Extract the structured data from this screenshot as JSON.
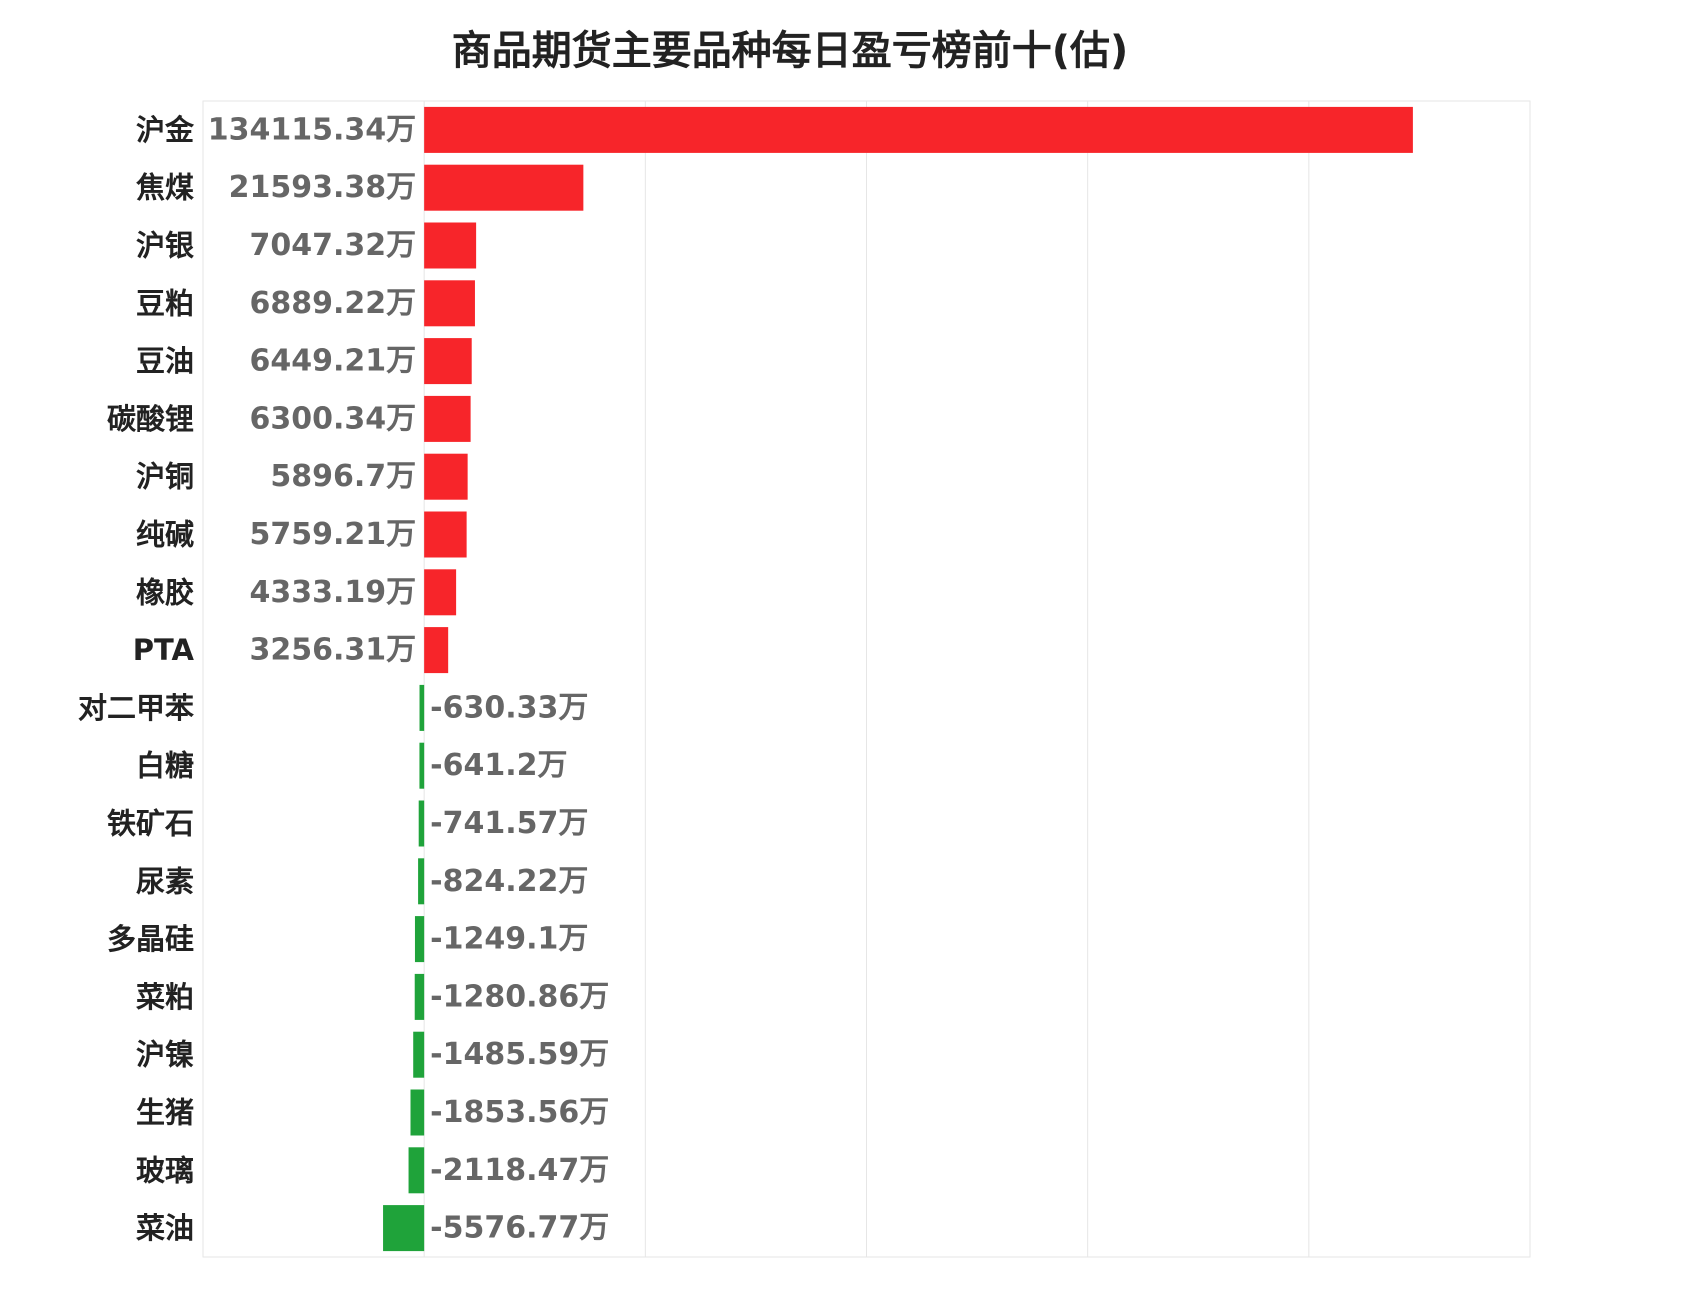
{
  "chart_data": {
    "type": "bar",
    "orientation": "horizontal",
    "title": "商品期货主要品种每日盈亏榜前十(估)",
    "unit": "万",
    "categories": [
      "沪金",
      "焦煤",
      "沪银",
      "豆粕",
      "豆油",
      "碳酸锂",
      "沪铜",
      "纯碱",
      "橡胶",
      "PTA",
      "对二甲苯",
      "白糖",
      "铁矿石",
      "尿素",
      "多晶硅",
      "菜粕",
      "沪镍",
      "生猪",
      "玻璃",
      "菜油"
    ],
    "values": [
      134115.34,
      21593.38,
      7047.32,
      6889.22,
      6449.21,
      6300.34,
      5896.7,
      5759.21,
      4333.19,
      3256.31,
      -630.33,
      -641.2,
      -741.57,
      -824.22,
      -1249.1,
      -1280.86,
      -1485.59,
      -1853.56,
      -2118.47,
      -5576.77
    ],
    "value_labels": [
      "134115.34万",
      "21593.38万",
      "7047.32万",
      "6889.22万",
      "6449.21万",
      "6300.34万",
      "5896.7万",
      "5759.21万",
      "4333.19万",
      "3256.31万",
      "-630.33万",
      "-641.2万",
      "-741.57万",
      "-824.22万",
      "-1249.1万",
      "-1280.86万",
      "-1485.59万",
      "-1853.56万",
      "-2118.47万",
      "-5576.77万"
    ],
    "xlim": [
      -30000,
      150000
    ],
    "grid": true,
    "colors": {
      "positive": "#f7252a",
      "negative": "#1fa33a"
    }
  }
}
